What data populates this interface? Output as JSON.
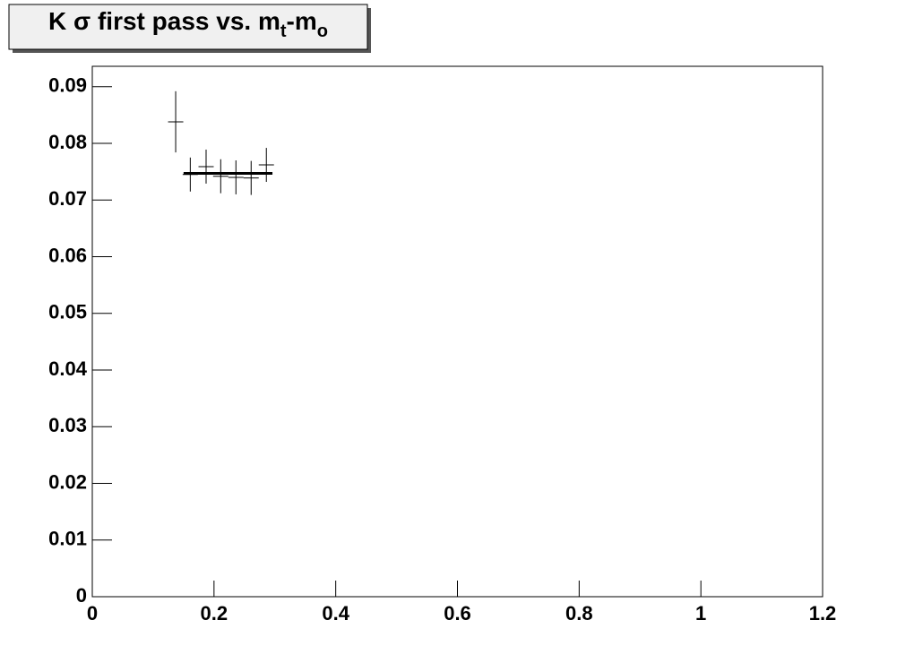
{
  "chart_data": {
    "type": "scatter",
    "title_parts": [
      "K σ first pass vs. m",
      "t",
      "-m",
      "o"
    ],
    "x": [
      0.137,
      0.161,
      0.187,
      0.211,
      0.236,
      0.261,
      0.286
    ],
    "xerr": [
      0.0125,
      0.0125,
      0.0125,
      0.0125,
      0.0125,
      0.0125,
      0.0125
    ],
    "values": [
      0.0838,
      0.0745,
      0.0759,
      0.0742,
      0.074,
      0.0739,
      0.0762
    ],
    "errors": [
      0.0054,
      0.003,
      0.003,
      0.003,
      0.003,
      0.003,
      0.003
    ],
    "color": "#000000",
    "fit": {
      "value": 0.0747,
      "xrange": [
        0.15,
        0.296
      ],
      "color": "#000000"
    },
    "xlim": [
      0,
      1.2
    ],
    "xticks": [
      0,
      0.2,
      0.4,
      0.6,
      0.8,
      1,
      1.2
    ],
    "ylim": [
      0,
      0.0936
    ],
    "yticks": [
      0,
      0.01,
      0.02,
      0.03,
      0.04,
      0.05,
      0.06,
      0.07,
      0.08,
      0.09
    ],
    "grid": false
  }
}
